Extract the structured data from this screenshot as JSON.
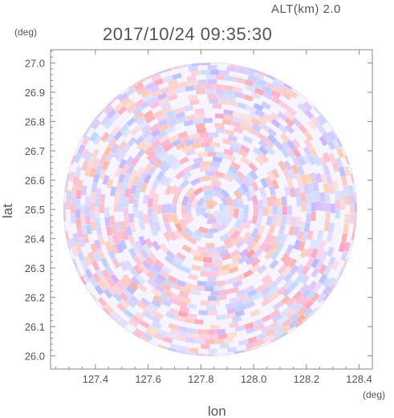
{
  "header": {
    "altitude_label": "ALT(km) 2.0",
    "timestamp": "2017/10/24 09:35:30"
  },
  "chart_data": {
    "type": "heatmap",
    "title": "2017/10/24 09:35:30",
    "subtitle": "ALT(km) 2.0",
    "xlabel": "lon",
    "ylabel": "lat",
    "x_unit": "(deg)",
    "y_unit": "(deg)",
    "xlim": [
      127.23,
      128.45
    ],
    "ylim": [
      25.955,
      27.045
    ],
    "x_ticks": [
      "127.4",
      "127.6",
      "127.8",
      "128.0",
      "128.2",
      "128.4"
    ],
    "x_tick_values": [
      127.4,
      127.6,
      127.8,
      128.0,
      128.2,
      128.4
    ],
    "y_ticks": [
      "26.0",
      "26.1",
      "26.2",
      "26.3",
      "26.4",
      "26.5",
      "26.6",
      "26.7",
      "26.8",
      "26.9",
      "27.0"
    ],
    "y_tick_values": [
      26.0,
      26.1,
      26.2,
      26.3,
      26.4,
      26.5,
      26.6,
      26.7,
      26.8,
      26.9,
      27.0
    ],
    "radar_center": {
      "lon": 127.835,
      "lat": 26.5
    },
    "radar_radius_deg_lat": 0.5,
    "colors": {
      "positive": "#ffb4b4",
      "negative": "#c8c8ff",
      "neutral": "#ffffff",
      "frame": "#888888",
      "text": "#555555"
    },
    "grid": false,
    "legend": "none"
  }
}
